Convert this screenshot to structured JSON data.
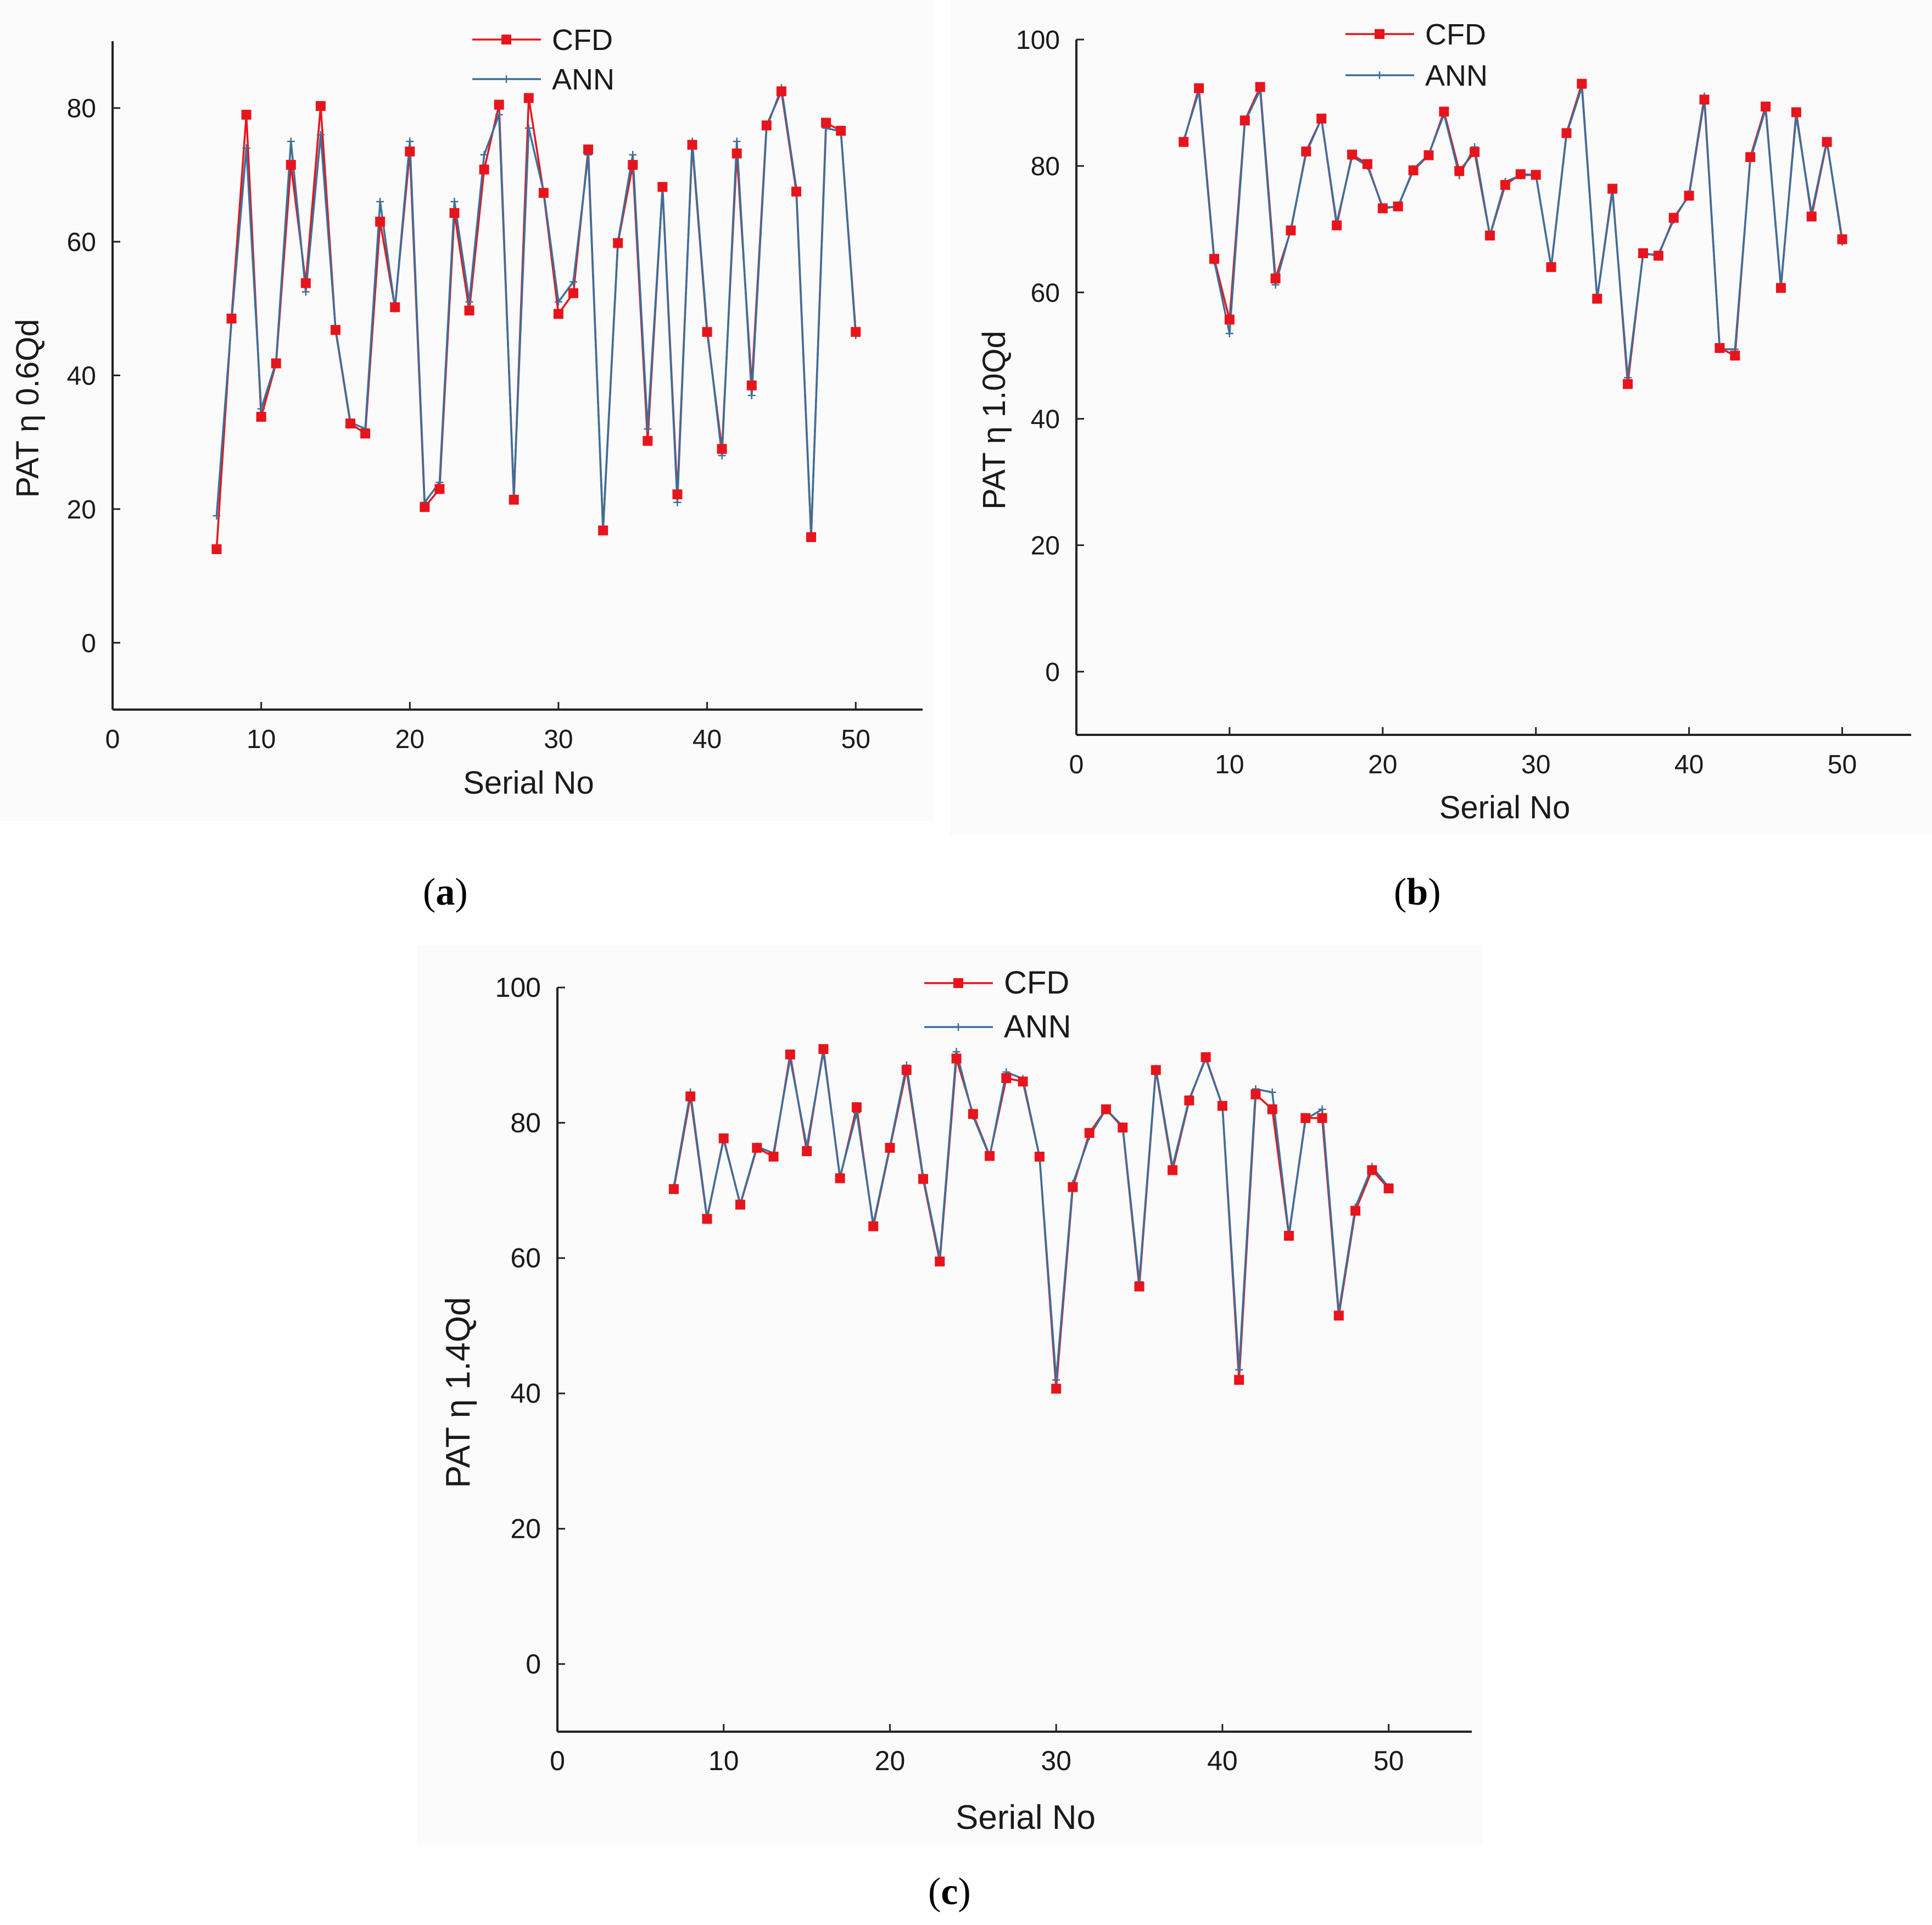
{
  "chart_data": [
    {
      "type": "line",
      "panel": "a",
      "caption_letter": "a",
      "xlabel": "Serial No",
      "ylabel": "PAT η 0.6Qd",
      "xlim": [
        0,
        54.5
      ],
      "ylim": [
        -10,
        90
      ],
      "xticks": [
        0,
        10,
        20,
        30,
        40,
        50
      ],
      "yticks": [
        0,
        20,
        40,
        60,
        80
      ],
      "legend_position": "top-center",
      "series": [
        {
          "name": "CFD",
          "color": "#e8141c",
          "marker": "square",
          "x": [
            7,
            8,
            9,
            10,
            11,
            12,
            13,
            14,
            15,
            16,
            17,
            18,
            19,
            20,
            21,
            22,
            23,
            24,
            25,
            26,
            27,
            28,
            29,
            30,
            31,
            32,
            33,
            34,
            35,
            36,
            37,
            38,
            39,
            40,
            41,
            42,
            43,
            44,
            45,
            46,
            47,
            48,
            49,
            50
          ],
          "y": [
            14,
            48.5,
            79,
            33.8,
            41.8,
            71.5,
            53.8,
            80.3,
            46.8,
            32.8,
            31.3,
            63,
            50.2,
            73.5,
            20.3,
            23,
            64.3,
            49.7,
            70.8,
            80.5,
            21.4,
            81.5,
            67.3,
            49.2,
            52.3,
            73.8,
            16.8,
            59.8,
            71.5,
            30.2,
            68.2,
            22.2,
            74.5,
            46.5,
            29,
            73.2,
            38.5,
            77.4,
            82.5,
            67.5,
            15.8,
            77.8,
            76.6,
            46.5
          ]
        },
        {
          "name": "ANN",
          "color": "#3d6f99",
          "marker": "plus",
          "x": [
            7,
            8,
            9,
            10,
            11,
            12,
            13,
            14,
            15,
            16,
            17,
            18,
            19,
            20,
            21,
            22,
            23,
            24,
            25,
            26,
            27,
            28,
            29,
            30,
            31,
            32,
            33,
            34,
            35,
            36,
            37,
            38,
            39,
            40,
            41,
            42,
            43,
            44,
            45,
            46,
            47,
            48,
            49,
            50
          ],
          "y": [
            19,
            48,
            74,
            35,
            42,
            75,
            52.5,
            76,
            47,
            33,
            32,
            66,
            50,
            75,
            21,
            24,
            66,
            51,
            73,
            79,
            22,
            77,
            67.5,
            51,
            54,
            73,
            17,
            60,
            73,
            32,
            68,
            21,
            75,
            47,
            28,
            75,
            37,
            77,
            83,
            68,
            16,
            77,
            76.5,
            46
          ]
        }
      ]
    },
    {
      "type": "line",
      "panel": "b",
      "caption_letter": "b",
      "xlabel": "Serial No",
      "ylabel": "PAT η 1.0Qd",
      "xlim": [
        0,
        54.5
      ],
      "ylim": [
        -10,
        100
      ],
      "xticks": [
        0,
        10,
        20,
        30,
        40,
        50
      ],
      "yticks": [
        0,
        20,
        40,
        60,
        80,
        100
      ],
      "legend_position": "top-center",
      "series": [
        {
          "name": "CFD",
          "color": "#e8141c",
          "marker": "square",
          "x": [
            7,
            8,
            9,
            10,
            11,
            12,
            13,
            14,
            15,
            16,
            17,
            18,
            19,
            20,
            21,
            22,
            23,
            24,
            25,
            26,
            27,
            28,
            29,
            30,
            31,
            32,
            33,
            34,
            35,
            36,
            37,
            38,
            39,
            40,
            41,
            42,
            43,
            44,
            45,
            46,
            47,
            48,
            49,
            50
          ],
          "y": [
            83.8,
            92.3,
            65.3,
            55.7,
            87.2,
            92.5,
            62.2,
            69.8,
            82.3,
            87.5,
            70.6,
            81.8,
            80.3,
            73.3,
            73.6,
            79.3,
            81.7,
            88.6,
            79.2,
            82.2,
            69,
            77,
            78.7,
            78.6,
            64,
            85.2,
            93,
            59,
            76.4,
            45.5,
            66.2,
            65.8,
            71.8,
            75.3,
            90.5,
            51.2,
            50,
            81.4,
            89.4,
            60.7,
            88.5,
            72,
            83.8,
            68.4
          ]
        },
        {
          "name": "ANN",
          "color": "#3d6f99",
          "marker": "plus",
          "x": [
            7,
            8,
            9,
            10,
            11,
            12,
            13,
            14,
            15,
            16,
            17,
            18,
            19,
            20,
            21,
            22,
            23,
            24,
            25,
            26,
            27,
            28,
            29,
            30,
            31,
            32,
            33,
            34,
            35,
            36,
            37,
            38,
            39,
            40,
            41,
            42,
            43,
            44,
            45,
            46,
            47,
            48,
            49,
            50
          ],
          "y": [
            84,
            91.8,
            65,
            53.5,
            87,
            92,
            61.2,
            70,
            82,
            87.5,
            71,
            81.5,
            80,
            73.5,
            73.5,
            79.5,
            81.8,
            88.2,
            78.5,
            83,
            69,
            77.5,
            78.5,
            78.6,
            64,
            85,
            92.5,
            59,
            76,
            46.5,
            66,
            66,
            71.5,
            75.5,
            91,
            51,
            51,
            81,
            89,
            61,
            88,
            72.5,
            84,
            68
          ]
        }
      ]
    },
    {
      "type": "line",
      "panel": "c",
      "caption_letter": "c",
      "xlabel": "Serial No",
      "ylabel": "PAT η 1.4Qd",
      "xlim": [
        0,
        55
      ],
      "ylim": [
        -10,
        100
      ],
      "xticks": [
        0,
        10,
        20,
        30,
        40,
        50
      ],
      "yticks": [
        0,
        20,
        40,
        60,
        80,
        100
      ],
      "legend_position": "top-center",
      "series": [
        {
          "name": "CFD",
          "color": "#e8141c",
          "marker": "square",
          "x": [
            7,
            8,
            9,
            10,
            11,
            12,
            13,
            14,
            15,
            16,
            17,
            18,
            19,
            20,
            21,
            22,
            23,
            24,
            25,
            26,
            27,
            28,
            29,
            30,
            31,
            32,
            33,
            34,
            35,
            36,
            37,
            38,
            39,
            40,
            41,
            42,
            43,
            44,
            45,
            46,
            47,
            48,
            49,
            50
          ],
          "y": [
            70.2,
            83.9,
            65.8,
            77.7,
            67.9,
            76.3,
            75,
            90.1,
            75.8,
            90.9,
            71.8,
            82.3,
            64.7,
            76.3,
            87.8,
            71.7,
            59.5,
            89.5,
            81.3,
            75.1,
            86.6,
            86.1,
            75,
            40.7,
            70.5,
            78.5,
            82,
            79.3,
            55.8,
            87.8,
            73,
            83.3,
            89.7,
            82.5,
            42,
            84.2,
            82,
            63.3,
            80.7,
            80.7,
            51.5,
            67,
            73,
            70.3
          ]
        },
        {
          "name": "ANN",
          "color": "#3d6f99",
          "marker": "plus",
          "x": [
            7,
            8,
            9,
            10,
            11,
            12,
            13,
            14,
            15,
            16,
            17,
            18,
            19,
            20,
            21,
            22,
            23,
            24,
            25,
            26,
            27,
            28,
            29,
            30,
            31,
            32,
            33,
            34,
            35,
            36,
            37,
            38,
            39,
            40,
            41,
            42,
            43,
            44,
            45,
            46,
            47,
            48,
            49,
            50
          ],
          "y": [
            70.5,
            84.5,
            66,
            77.5,
            68,
            76.5,
            75.5,
            89.5,
            76.5,
            90.5,
            72,
            81.5,
            65,
            76.5,
            88.5,
            72,
            60,
            90.5,
            81,
            75,
            87.5,
            86.5,
            75,
            42,
            71,
            78,
            82,
            79.5,
            56.5,
            88,
            73.5,
            83.5,
            89.5,
            82.5,
            43.5,
            85,
            84.5,
            63.5,
            80.5,
            82,
            52,
            67.5,
            73.5,
            70.5
          ]
        }
      ]
    }
  ],
  "captions": {
    "a": {
      "open": "(",
      "letter": "a",
      "close": ")"
    },
    "b": {
      "open": "(",
      "letter": "b",
      "close": ")"
    },
    "c": {
      "open": "(",
      "letter": "c",
      "close": ")"
    }
  }
}
